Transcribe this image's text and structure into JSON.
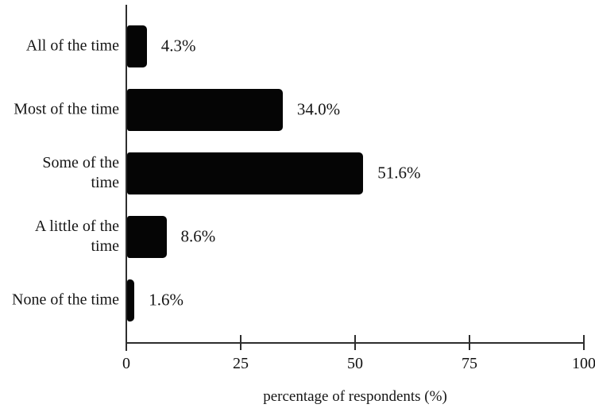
{
  "chart_data": {
    "type": "bar",
    "orientation": "horizontal",
    "title": "",
    "xlabel": "percentage of respondents (%)",
    "ylabel": "",
    "categories": [
      "All of the time",
      "Most of the time",
      "Some of the time",
      "A little of the time",
      "None of the time"
    ],
    "category_lines": [
      [
        "All of the time"
      ],
      [
        "Most of the time"
      ],
      [
        "Some of the",
        "time"
      ],
      [
        "A little of the",
        "time"
      ],
      [
        "None of the time"
      ]
    ],
    "values": [
      4.3,
      34.0,
      51.6,
      8.6,
      1.6
    ],
    "value_labels": [
      "4.3%",
      "34.0%",
      "51.6%",
      "8.6%",
      "1.6%"
    ],
    "xlim": [
      0,
      100
    ],
    "x_ticks": [
      0,
      25,
      50,
      75,
      100
    ],
    "x_tick_labels": [
      "0",
      "25",
      "50",
      "75",
      "100"
    ],
    "grid": false,
    "legend_position": "none",
    "colors": {
      "bar": "#050505",
      "axis": "#2e2e2e",
      "text": "#161616",
      "background": "#ffffff"
    }
  }
}
